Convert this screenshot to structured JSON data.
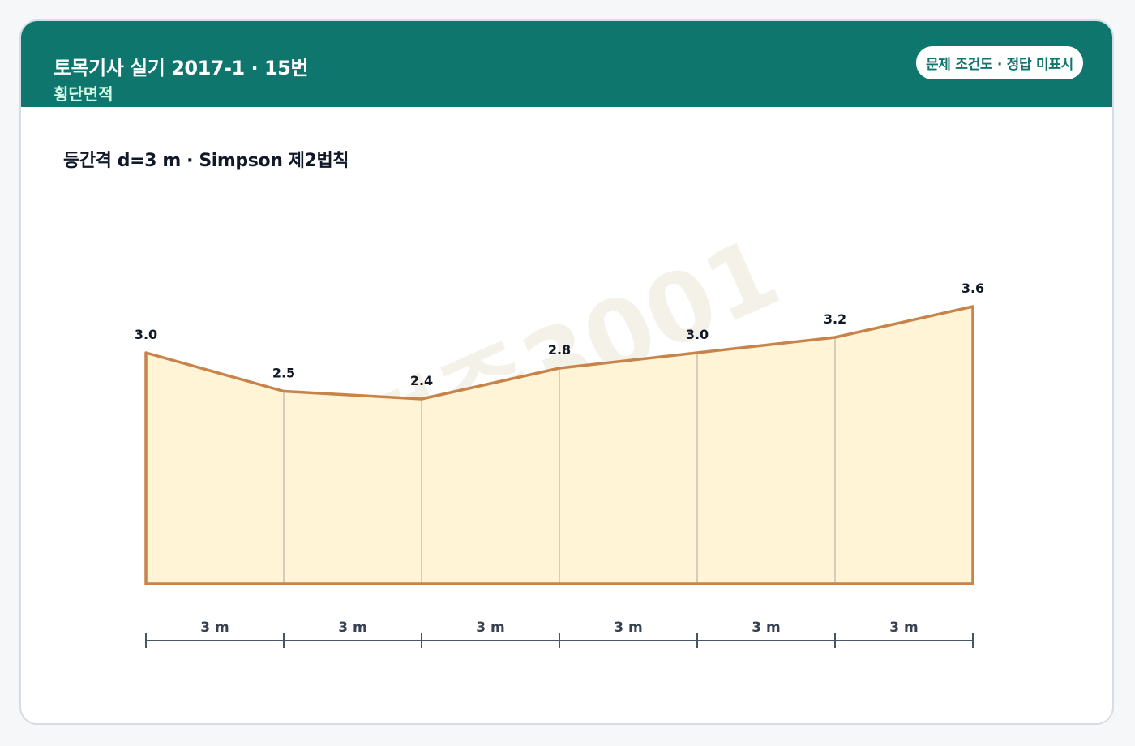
{
  "header": {
    "title": "토목기사 실기 2017-1 · 15번",
    "subtitle": "횡단면적",
    "badge": "문제 조건도 · 정답 미표시"
  },
  "section": {
    "title": "등간격 d=3 m · Simpson 제2법칙"
  },
  "watermark": "자격증3001",
  "colors": {
    "header": "#0f766e",
    "profile_line": "#c8834a",
    "fill": "#fff5d6",
    "dimension": "#475569"
  },
  "chart_data": {
    "type": "area",
    "x": [
      0,
      3,
      6,
      9,
      12,
      15,
      18
    ],
    "heights": [
      3.0,
      2.5,
      2.4,
      2.8,
      3.0,
      3.2,
      3.6
    ],
    "height_labels": [
      "3.0",
      "2.5",
      "2.4",
      "2.8",
      "3.0",
      "3.2",
      "3.6"
    ],
    "intervals": [
      "3 m",
      "3 m",
      "3 m",
      "3 m",
      "3 m",
      "3 m"
    ],
    "ylim": [
      0,
      3.6
    ]
  }
}
